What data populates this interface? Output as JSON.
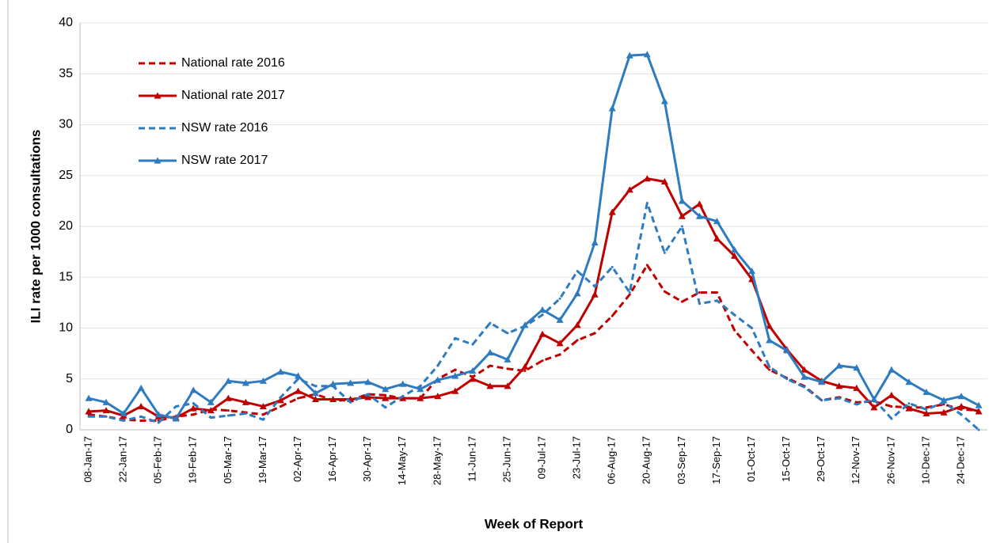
{
  "chart_data": {
    "type": "line",
    "y_label": "ILI rate per 1000 consultations",
    "x_label": "Week of Report",
    "categories": [
      "08-Jan-17",
      null,
      "22-Jan-17",
      null,
      "05-Feb-17",
      null,
      "19-Feb-17",
      null,
      "05-Mar-17",
      null,
      "19-Mar-17",
      null,
      "02-Apr-17",
      null,
      "16-Apr-17",
      null,
      "30-Apr-17",
      null,
      "14-May-17",
      null,
      "28-May-17",
      null,
      "11-Jun-17",
      null,
      "25-Jun-17",
      null,
      "09-Jul-17",
      null,
      "23-Jul-17",
      null,
      "06-Aug-17",
      null,
      "20-Aug-17",
      null,
      "03-Sep-17",
      null,
      "17-Sep-17",
      null,
      "01-Oct-17",
      null,
      "15-Oct-17",
      null,
      "29-Oct-17",
      null,
      "12-Nov-17",
      null,
      "26-Nov-17",
      null,
      "10-Dec-17",
      null,
      "24-Dec-17",
      null
    ],
    "ylim": [
      0,
      40
    ],
    "yticks": [
      0,
      5,
      10,
      15,
      20,
      25,
      30,
      35,
      40
    ],
    "grid": true,
    "legend": "upper left",
    "series": [
      {
        "name": "National rate 2016",
        "color": "#c00000",
        "dashed": true,
        "marker": "none",
        "values": [
          1.5,
          1.3,
          1.0,
          0.9,
          0.9,
          1.3,
          1.5,
          2.0,
          1.9,
          1.7,
          1.5,
          2.3,
          3.1,
          3.5,
          2.9,
          2.9,
          3.5,
          3.4,
          3.1,
          3.1,
          5.0,
          5.9,
          5.2,
          6.3,
          6.0,
          5.8,
          6.8,
          7.4,
          8.8,
          9.5,
          11.2,
          13.3,
          16.2,
          13.6,
          12.6,
          13.5,
          13.5,
          9.8,
          7.8,
          5.9,
          5.1,
          4.3,
          2.9,
          3.2,
          2.7,
          2.8,
          2.3,
          2.2,
          2.2,
          2.5,
          2.0,
          1.9
        ]
      },
      {
        "name": "National rate 2017",
        "color": "#c00000",
        "dashed": false,
        "marker": "triangle",
        "values": [
          1.8,
          1.9,
          1.4,
          2.3,
          1.3,
          1.2,
          2.1,
          1.9,
          3.1,
          2.7,
          2.3,
          2.9,
          3.8,
          3.0,
          3.0,
          3.0,
          3.2,
          3.1,
          3.1,
          3.1,
          3.3,
          3.8,
          5.0,
          4.3,
          4.3,
          6.2,
          9.4,
          8.5,
          10.3,
          13.3,
          21.4,
          23.6,
          24.7,
          24.4,
          21.0,
          22.2,
          18.8,
          17.1,
          14.8,
          10.2,
          7.9,
          5.9,
          4.8,
          4.3,
          4.1,
          2.2,
          3.4,
          2.1,
          1.6,
          1.7,
          2.3,
          1.8
        ]
      },
      {
        "name": "NSW rate 2016",
        "color": "#2e7bc0",
        "dashed": true,
        "marker": "none",
        "values": [
          1.3,
          1.3,
          0.9,
          1.3,
          0.7,
          2.3,
          2.6,
          1.2,
          1.4,
          1.6,
          1.0,
          3.2,
          5.0,
          4.3,
          4.3,
          2.7,
          3.5,
          2.2,
          3.3,
          4.3,
          6.3,
          9.0,
          8.4,
          10.5,
          9.5,
          10.2,
          11.3,
          12.9,
          15.6,
          14.1,
          16.0,
          13.5,
          22.3,
          17.4,
          20.0,
          12.4,
          12.7,
          11.3,
          10.0,
          6.2,
          5.0,
          4.2,
          2.9,
          3.1,
          2.5,
          3.0,
          1.1,
          2.6,
          2.0,
          2.7,
          1.5,
          0.0
        ]
      },
      {
        "name": "NSW rate 2017",
        "color": "#2e7bc0",
        "dashed": false,
        "marker": "triangle",
        "values": [
          3.1,
          2.7,
          1.6,
          4.1,
          1.5,
          1.1,
          3.9,
          2.7,
          4.8,
          4.6,
          4.8,
          5.7,
          5.3,
          3.6,
          4.5,
          4.6,
          4.7,
          4.0,
          4.5,
          4.0,
          4.9,
          5.3,
          5.8,
          7.6,
          6.9,
          10.3,
          11.8,
          10.8,
          13.4,
          18.4,
          31.6,
          36.8,
          36.9,
          32.3,
          22.5,
          21.0,
          20.5,
          17.7,
          15.6,
          8.8,
          7.8,
          5.2,
          4.7,
          6.3,
          6.1,
          3.0,
          5.9,
          4.7,
          3.7,
          2.9,
          3.3,
          2.4
        ]
      }
    ]
  }
}
